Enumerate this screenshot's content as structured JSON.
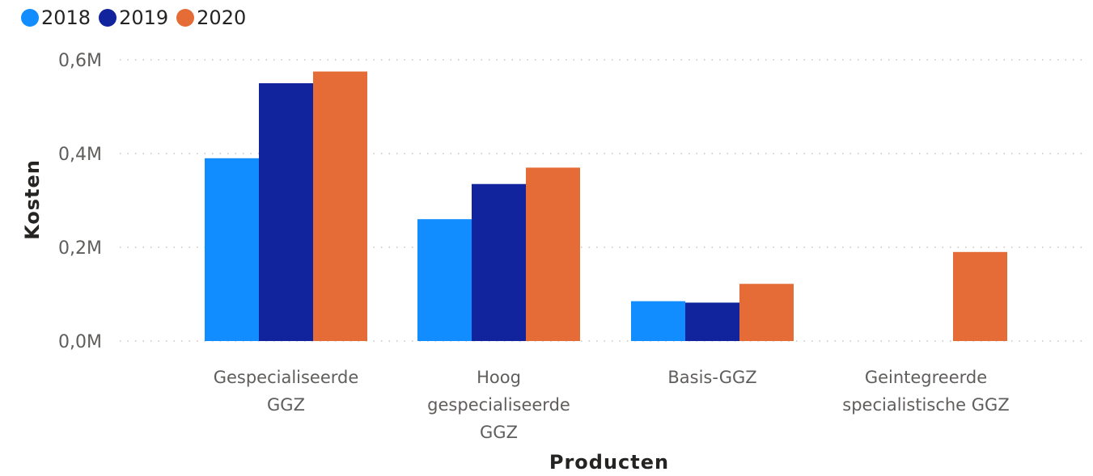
{
  "chart_data": {
    "type": "bar",
    "xlabel": "Producten",
    "ylabel": "Kosten",
    "ylim": [
      0,
      0.6
    ],
    "yticks": [
      "0,0M",
      "0,2M",
      "0,4M",
      "0,6M"
    ],
    "ytick_values": [
      0,
      0.2,
      0.4,
      0.6
    ],
    "grid": true,
    "legend_position": "top-left",
    "categories": [
      [
        "Gespecialiseerde",
        "GGZ"
      ],
      [
        "Hoog",
        "gespecialiseerde",
        "GGZ"
      ],
      [
        "Basis-GGZ"
      ],
      [
        "Geintegreerde",
        "specialistische GGZ"
      ]
    ],
    "series": [
      {
        "name": "2018",
        "color": "#118DFF",
        "values": [
          0.39,
          0.26,
          0.085,
          null
        ]
      },
      {
        "name": "2019",
        "color": "#12239E",
        "values": [
          0.55,
          0.335,
          0.082,
          null
        ]
      },
      {
        "name": "2020",
        "color": "#E66C37",
        "values": [
          0.575,
          0.37,
          0.122,
          0.19
        ]
      }
    ]
  }
}
